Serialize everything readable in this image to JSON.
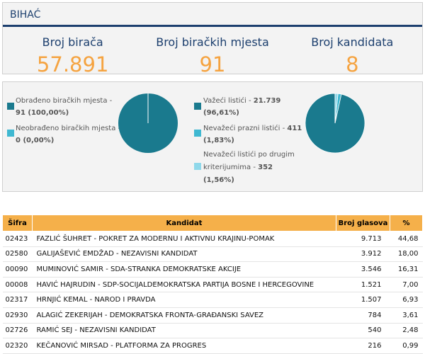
{
  "header": {
    "title": "BIHAĆ",
    "stats": [
      {
        "label": "Broj birača",
        "value": "57.891"
      },
      {
        "label": "Broj biračkih mjesta",
        "value": "91"
      },
      {
        "label": "Broj kandidata",
        "value": "8"
      }
    ]
  },
  "colors": {
    "primary": "#1c3f6e",
    "accent": "#f5a340",
    "teal": "#1a7a8e",
    "cyan": "#3fb8d1",
    "light_blue": "#8fd8ea",
    "table_header": "#f5b04a"
  },
  "stations_chart": {
    "legend": [
      {
        "label": "Obrađeno biračkih mjesta -",
        "value": "91 (100,00%)",
        "color": "#1a7a8e"
      },
      {
        "label": "Neobrađeno biračkih mjesta -",
        "value": "0 (0,00%)",
        "color": "#3fb8d1"
      }
    ],
    "slices": [
      100.0,
      0.0
    ]
  },
  "ballots_chart": {
    "legend": [
      {
        "label": "Važeći listići -",
        "value": "21.739",
        "pct": "(96,61%)",
        "color": "#1a7a8e"
      },
      {
        "label": "Nevažeći prazni listići -",
        "value": "411",
        "pct": "(1,83%)",
        "color": "#3fb8d1"
      },
      {
        "label": "Nevažeći listići po drugim",
        "label2": "kriterijumima -",
        "value": "352",
        "pct": "(1,56%)",
        "color": "#8fd8ea"
      }
    ],
    "slices": [
      96.61,
      1.83,
      1.56
    ]
  },
  "table": {
    "headers": {
      "code": "Šifra",
      "candidate": "Kandidat",
      "votes": "Broj glasova",
      "pct": "%"
    },
    "rows": [
      {
        "code": "02423",
        "candidate": "FAZLIĆ ŠUHRET - POKRET ZA MODERNU I AKTIVNU KRAJINU-POMAK",
        "votes": "9.713",
        "pct": "44,68"
      },
      {
        "code": "02580",
        "candidate": "GALIJAŠEVIĆ EMDŽAD - NEZAVISNI KANDIDAT",
        "votes": "3.912",
        "pct": "18,00"
      },
      {
        "code": "00090",
        "candidate": "MUMINOVIĆ SAMIR - SDA-STRANKA DEMOKRATSKE AKCIJE",
        "votes": "3.546",
        "pct": "16,31"
      },
      {
        "code": "00008",
        "candidate": "HAVIĆ HAJRUDIN - SDP-SOCIJALDEMOKRATSKA PARTIJA BOSNE I HERCEGOVINE",
        "votes": "1.521",
        "pct": "7,00"
      },
      {
        "code": "02317",
        "candidate": "HRNJIĆ KEMAL - NAROD I PRAVDA",
        "votes": "1.507",
        "pct": "6,93"
      },
      {
        "code": "02930",
        "candidate": "ALAGIĆ ZEKERIJAH - DEMOKRATSKA FRONTA-GRAĐANSKI SAVEZ",
        "votes": "784",
        "pct": "3,61"
      },
      {
        "code": "02726",
        "candidate": "RAMIĆ SEJ - NEZAVISNI KANDIDAT",
        "votes": "540",
        "pct": "2,48"
      },
      {
        "code": "02320",
        "candidate": "KEČANOVIĆ MIRSAD - PLATFORMA ZA PROGRES",
        "votes": "216",
        "pct": "0,99"
      }
    ]
  }
}
